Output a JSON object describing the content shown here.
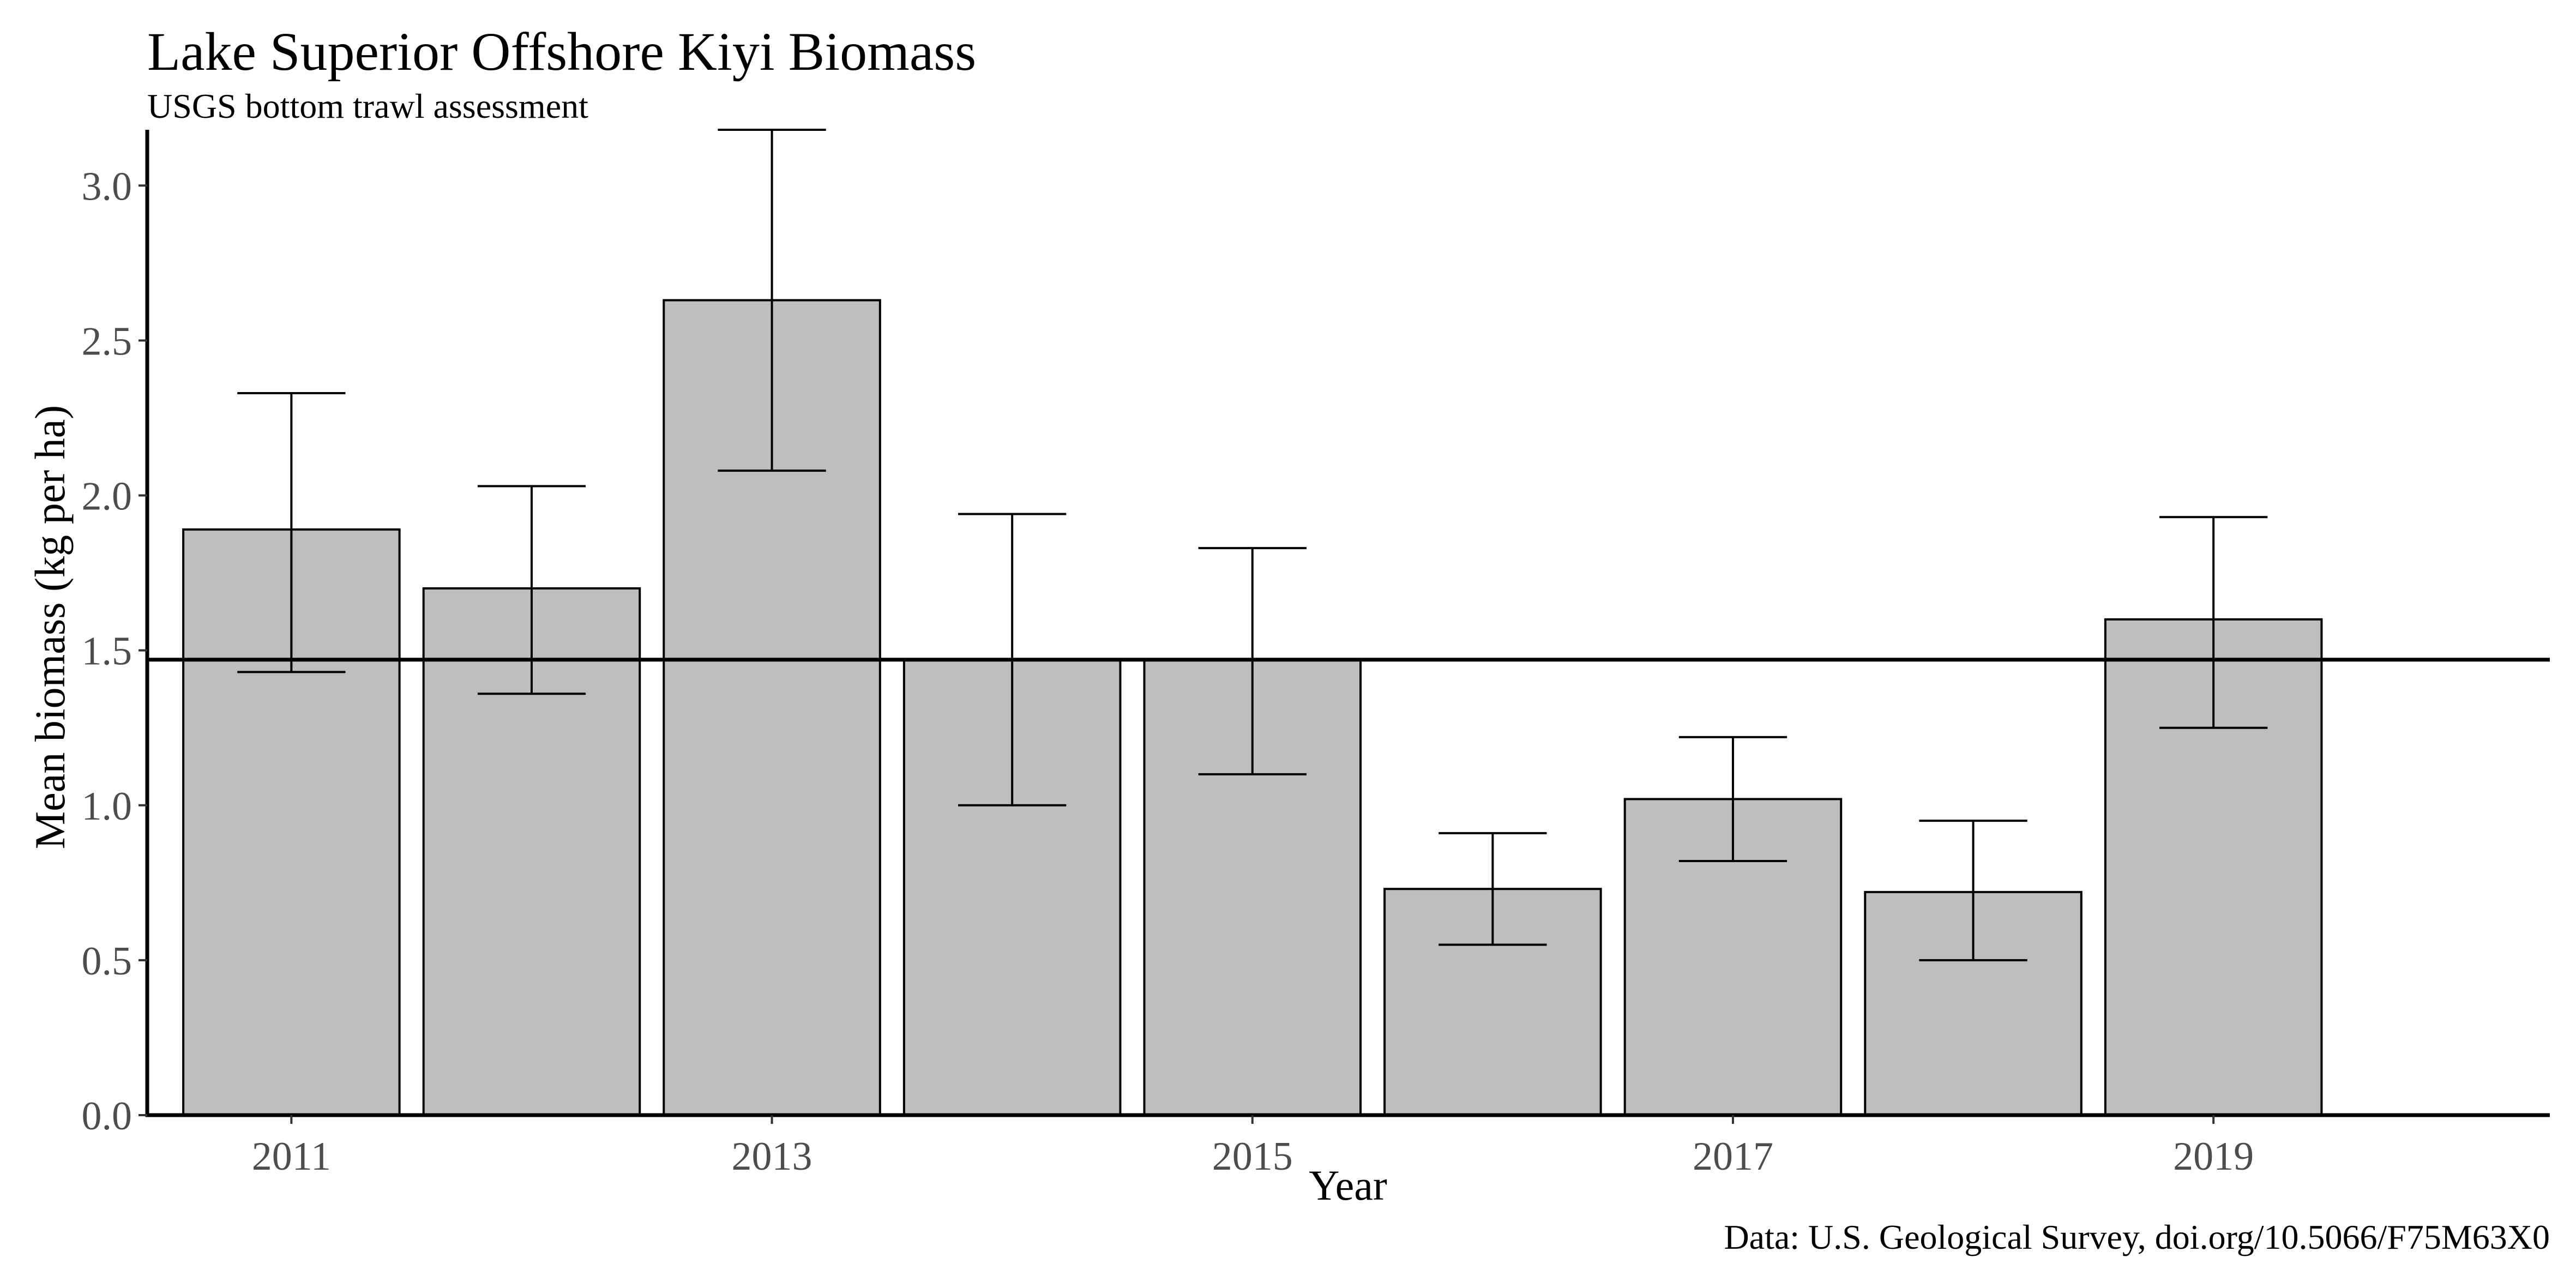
{
  "chart_data": {
    "type": "bar",
    "title": "Lake Superior Offshore Kiyi Biomass",
    "subtitle": "USGS bottom trawl assessment",
    "caption": "Data: U.S. Geological Survey, doi.org/10.5066/F75M63X0",
    "xlabel": "Year",
    "ylabel": "Mean biomass (kg per ha)",
    "x": [
      2011,
      2012,
      2013,
      2014,
      2015,
      2016,
      2017,
      2018,
      2019
    ],
    "values": [
      1.89,
      1.7,
      2.63,
      1.47,
      1.47,
      0.73,
      1.02,
      0.72,
      1.6
    ],
    "error_low": [
      1.43,
      1.36,
      2.08,
      1.0,
      1.1,
      0.55,
      0.82,
      0.5,
      1.25
    ],
    "error_high": [
      2.33,
      2.03,
      3.18,
      1.94,
      1.83,
      0.91,
      1.22,
      0.95,
      1.93
    ],
    "reference_line": 1.47,
    "x_ticks": [
      2011,
      2013,
      2015,
      2017,
      2019
    ],
    "y_ticks": [
      0.0,
      0.5,
      1.0,
      1.5,
      2.0,
      2.5,
      3.0
    ],
    "ylim": [
      0,
      3.18
    ],
    "xlim": [
      2010.4,
      2020.4
    ],
    "grid": false,
    "colors": {
      "bar_fill": "#bebebe",
      "bar_outline": "#000000"
    }
  }
}
